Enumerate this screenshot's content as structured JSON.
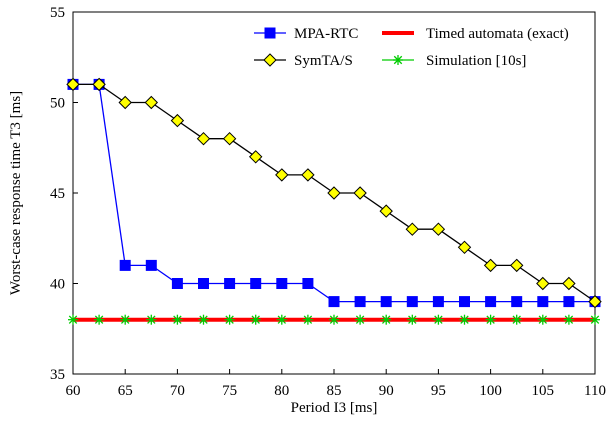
{
  "chart_data": {
    "type": "line",
    "title": "",
    "xlabel": "Period I3 [ms]",
    "ylabel": "Worst-case response time T3 [ms]",
    "xlim": [
      60,
      110
    ],
    "ylim": [
      35,
      55
    ],
    "xticks": [
      60,
      65,
      70,
      75,
      80,
      85,
      90,
      95,
      100,
      105,
      110
    ],
    "yticks": [
      35,
      40,
      45,
      50,
      55
    ],
    "grid": false,
    "legend_position": "top-right",
    "series": [
      {
        "name": "MPA-RTC",
        "color": "#0000ff",
        "marker": "square",
        "x": [
          60,
          62.5,
          65,
          67.5,
          70,
          72.5,
          75,
          77.5,
          80,
          82.5,
          85,
          87.5,
          90,
          92.5,
          95,
          97.5,
          100,
          102.5,
          105,
          107.5,
          110
        ],
        "y": [
          51,
          51,
          41,
          41,
          40,
          40,
          40,
          40,
          40,
          40,
          39,
          39,
          39,
          39,
          39,
          39,
          39,
          39,
          39,
          39,
          39
        ]
      },
      {
        "name": "SymTA/S",
        "color": "#000000",
        "markerFill": "#ffff00",
        "marker": "diamond",
        "x": [
          60,
          62.5,
          65,
          67.5,
          70,
          72.5,
          75,
          77.5,
          80,
          82.5,
          85,
          87.5,
          90,
          92.5,
          95,
          97.5,
          100,
          102.5,
          105,
          107.5,
          110
        ],
        "y": [
          51,
          51,
          50,
          50,
          49,
          48,
          48,
          47,
          46,
          46,
          45,
          45,
          44,
          43,
          43,
          42,
          41,
          41,
          40,
          40,
          39
        ]
      },
      {
        "name": "Timed automata (exact)",
        "color": "#ff0000",
        "marker": "none",
        "x": [
          60,
          110
        ],
        "y": [
          38,
          38
        ]
      },
      {
        "name": "Simulation [10s]",
        "color": "#00cc00",
        "marker": "star",
        "x": [
          60,
          62.5,
          65,
          67.5,
          70,
          72.5,
          75,
          77.5,
          80,
          82.5,
          85,
          87.5,
          90,
          92.5,
          95,
          97.5,
          100,
          102.5,
          105,
          107.5,
          110
        ],
        "y": [
          38,
          38,
          38,
          38,
          38,
          38,
          38,
          38,
          38,
          38,
          38,
          38,
          38,
          38,
          38,
          38,
          38,
          38,
          38,
          38,
          38
        ]
      }
    ]
  }
}
